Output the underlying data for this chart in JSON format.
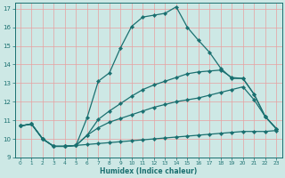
{
  "xlabel": "Humidex (Indice chaleur)",
  "xlim": [
    -0.5,
    23.5
  ],
  "ylim": [
    9,
    17.3
  ],
  "yticks": [
    9,
    10,
    11,
    12,
    13,
    14,
    15,
    16,
    17
  ],
  "xticks": [
    0,
    1,
    2,
    3,
    4,
    5,
    6,
    7,
    8,
    9,
    10,
    11,
    12,
    13,
    14,
    15,
    16,
    17,
    18,
    19,
    20,
    21,
    22,
    23
  ],
  "background_color": "#cde8e5",
  "grid_color": "#e8a0a0",
  "line_color": "#1a7070",
  "line1_x": [
    0,
    1,
    2,
    3,
    4,
    5,
    6,
    7,
    8,
    9,
    10,
    11,
    12,
    13,
    14,
    15,
    16,
    17,
    18,
    19,
    20,
    21,
    22,
    23
  ],
  "line1_y": [
    10.7,
    10.8,
    10.0,
    9.6,
    9.6,
    9.65,
    9.7,
    9.75,
    9.8,
    9.85,
    9.9,
    9.95,
    10.0,
    10.05,
    10.1,
    10.15,
    10.2,
    10.25,
    10.3,
    10.35,
    10.4,
    10.4,
    10.4,
    10.45
  ],
  "line2_x": [
    0,
    1,
    2,
    3,
    4,
    5,
    6,
    7,
    8,
    9,
    10,
    11,
    12,
    13,
    14,
    15,
    16,
    17,
    18,
    19,
    20,
    21,
    22,
    23
  ],
  "line2_y": [
    10.7,
    10.8,
    10.0,
    9.6,
    9.6,
    9.65,
    10.2,
    10.6,
    10.9,
    11.1,
    11.3,
    11.5,
    11.7,
    11.85,
    12.0,
    12.1,
    12.2,
    12.35,
    12.5,
    12.65,
    12.8,
    12.1,
    11.2,
    10.55
  ],
  "line3_x": [
    0,
    1,
    2,
    3,
    4,
    5,
    6,
    7,
    8,
    9,
    10,
    11,
    12,
    13,
    14,
    15,
    16,
    17,
    18,
    19,
    20,
    21,
    22,
    23
  ],
  "line3_y": [
    10.7,
    10.8,
    10.0,
    9.6,
    9.6,
    9.65,
    10.2,
    11.05,
    11.5,
    11.9,
    12.3,
    12.65,
    12.9,
    13.1,
    13.3,
    13.5,
    13.6,
    13.65,
    13.7,
    13.3,
    13.25,
    12.4,
    11.2,
    10.55
  ],
  "line4_x": [
    0,
    1,
    2,
    3,
    4,
    5,
    6,
    7,
    8,
    9,
    10,
    11,
    12,
    13,
    14,
    15,
    16,
    17,
    18,
    19,
    20,
    21,
    22,
    23
  ],
  "line4_y": [
    10.7,
    10.8,
    10.0,
    9.6,
    9.6,
    9.65,
    11.15,
    13.1,
    13.55,
    14.9,
    16.05,
    16.55,
    16.65,
    16.75,
    17.1,
    16.0,
    15.3,
    14.65,
    13.8,
    13.25,
    13.25,
    12.4,
    11.2,
    10.55
  ]
}
